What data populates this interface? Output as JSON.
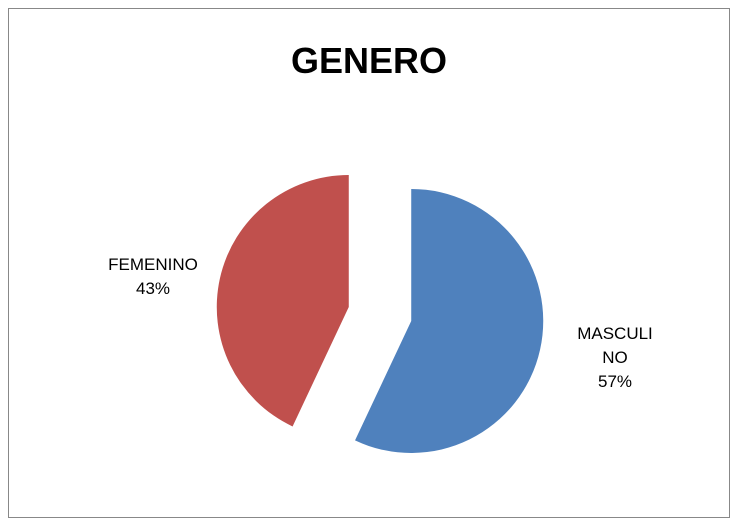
{
  "chart_data": {
    "type": "pie",
    "title": "GENERO",
    "categories": [
      "MASCULINO",
      "FEMENINO"
    ],
    "values": [
      57,
      43
    ],
    "value_labels": [
      "57%",
      "43%"
    ],
    "colors": [
      "#4f81bd",
      "#c0504d"
    ],
    "exploded": true
  }
}
